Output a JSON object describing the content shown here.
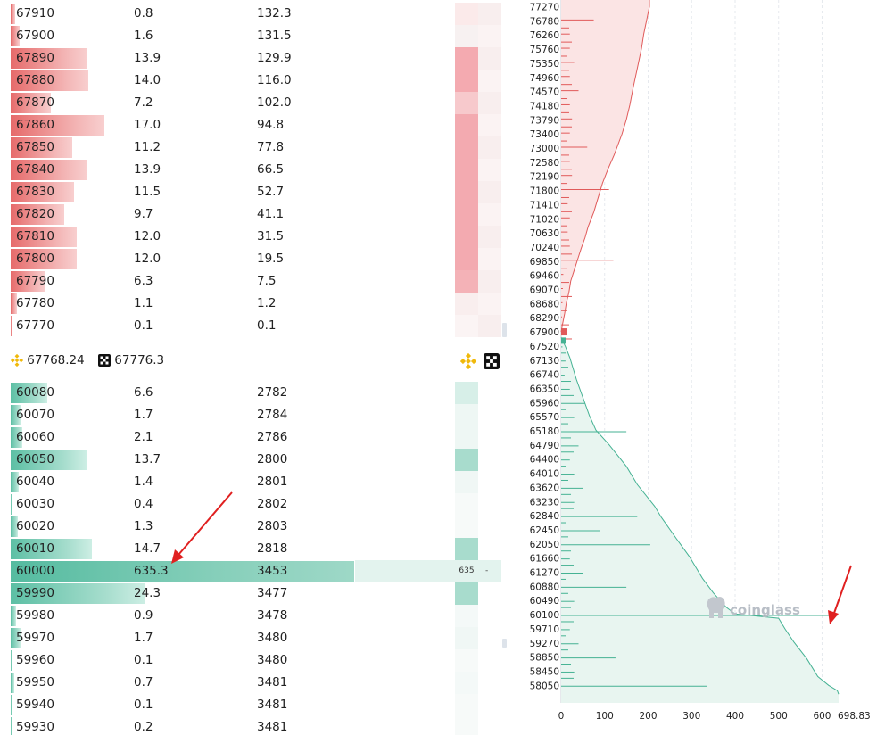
{
  "order_book": {
    "asks": [
      {
        "price": "67910",
        "size": "0.8",
        "total": "132.3",
        "depth": 0.8
      },
      {
        "price": "67900",
        "size": "1.6",
        "total": "131.5",
        "depth": 1.6
      },
      {
        "price": "67890",
        "size": "13.9",
        "total": "129.9",
        "depth": 13.9
      },
      {
        "price": "67880",
        "size": "14.0",
        "total": "116.0",
        "depth": 14.0
      },
      {
        "price": "67870",
        "size": "7.2",
        "total": "102.0",
        "depth": 7.2
      },
      {
        "price": "67860",
        "size": "17.0",
        "total": "94.8",
        "depth": 17.0
      },
      {
        "price": "67850",
        "size": "11.2",
        "total": "77.8",
        "depth": 11.2
      },
      {
        "price": "67840",
        "size": "13.9",
        "total": "66.5",
        "depth": 13.9
      },
      {
        "price": "67830",
        "size": "11.5",
        "total": "52.7",
        "depth": 11.5
      },
      {
        "price": "67820",
        "size": "9.7",
        "total": "41.1",
        "depth": 9.7
      },
      {
        "price": "67810",
        "size": "12.0",
        "total": "31.5",
        "depth": 12.0
      },
      {
        "price": "67800",
        "size": "12.0",
        "total": "19.5",
        "depth": 12.0
      },
      {
        "price": "67790",
        "size": "6.3",
        "total": "7.5",
        "depth": 6.3
      },
      {
        "price": "67780",
        "size": "1.1",
        "total": "1.2",
        "depth": 1.1
      },
      {
        "price": "67770",
        "size": "0.1",
        "total": "0.1",
        "depth": 0.1
      }
    ],
    "mid": {
      "binance_price": "67768.24",
      "okx_price": "67776.3"
    },
    "bids": [
      {
        "price": "60080",
        "size": "6.6",
        "total": "2782",
        "depth": 6.6
      },
      {
        "price": "60070",
        "size": "1.7",
        "total": "2784",
        "depth": 1.7
      },
      {
        "price": "60060",
        "size": "2.1",
        "total": "2786",
        "depth": 2.1
      },
      {
        "price": "60050",
        "size": "13.7",
        "total": "2800",
        "depth": 13.7
      },
      {
        "price": "60040",
        "size": "1.4",
        "total": "2801",
        "depth": 1.4
      },
      {
        "price": "60030",
        "size": "0.4",
        "total": "2802",
        "depth": 0.4
      },
      {
        "price": "60020",
        "size": "1.3",
        "total": "2803",
        "depth": 1.3
      },
      {
        "price": "60010",
        "size": "14.7",
        "total": "2818",
        "depth": 14.7
      },
      {
        "price": "60000",
        "size": "635.3",
        "total": "3453",
        "depth": 635.3
      },
      {
        "price": "59990",
        "size": "24.3",
        "total": "3477",
        "depth": 24.3
      },
      {
        "price": "59980",
        "size": "0.9",
        "total": "3478",
        "depth": 0.9
      },
      {
        "price": "59970",
        "size": "1.7",
        "total": "3480",
        "depth": 1.7
      },
      {
        "price": "59960",
        "size": "0.1",
        "total": "3480",
        "depth": 0.1
      },
      {
        "price": "59950",
        "size": "0.7",
        "total": "3481",
        "depth": 0.7
      },
      {
        "price": "59940",
        "size": "0.1",
        "total": "3481",
        "depth": 0.1
      },
      {
        "price": "59930",
        "size": "0.2",
        "total": "3481",
        "depth": 0.2
      }
    ],
    "wall": {
      "heat_label": "635",
      "dash": "-"
    },
    "colors": {
      "ask": "#e05a5a",
      "bid": "#45b293",
      "arrow": "#e02020"
    }
  },
  "depth_chart": {
    "y_ticks": [
      "77270",
      "76780",
      "76260",
      "75760",
      "75350",
      "74960",
      "74570",
      "74180",
      "73790",
      "73400",
      "73000",
      "72580",
      "72190",
      "71800",
      "71410",
      "71020",
      "70630",
      "70240",
      "69850",
      "69460",
      "69070",
      "68680",
      "68290",
      "67900",
      "67520",
      "67130",
      "66740",
      "66350",
      "65960",
      "65570",
      "65180",
      "64790",
      "64400",
      "64010",
      "63620",
      "63230",
      "62840",
      "62450",
      "62050",
      "61660",
      "61270",
      "60880",
      "60490",
      "60100",
      "59710",
      "59270",
      "58850",
      "58450",
      "58050"
    ],
    "x_ticks": [
      "0",
      "100",
      "200",
      "300",
      "400",
      "500",
      "600"
    ],
    "x_max_label": "698.83",
    "watermark": "coinglass",
    "ask_cum": [
      [
        0,
        67900
      ],
      [
        3,
        68100
      ],
      [
        8,
        68400
      ],
      [
        12,
        68700
      ],
      [
        18,
        69000
      ],
      [
        22,
        69300
      ],
      [
        30,
        69600
      ],
      [
        38,
        69900
      ],
      [
        46,
        70200
      ],
      [
        55,
        70500
      ],
      [
        62,
        70800
      ],
      [
        75,
        71200
      ],
      [
        85,
        71600
      ],
      [
        95,
        72000
      ],
      [
        108,
        72400
      ],
      [
        122,
        72800
      ],
      [
        140,
        73400
      ],
      [
        150,
        73800
      ],
      [
        158,
        74200
      ],
      [
        166,
        74700
      ],
      [
        175,
        75200
      ],
      [
        185,
        75800
      ],
      [
        190,
        76300
      ],
      [
        203,
        77270
      ]
    ],
    "ask_bars": [
      [
        67900,
        3
      ],
      [
        68290,
        2
      ],
      [
        68680,
        3
      ],
      [
        69070,
        4
      ],
      [
        69460,
        5
      ],
      [
        69850,
        120
      ],
      [
        70240,
        20
      ],
      [
        70630,
        15
      ],
      [
        71020,
        20
      ],
      [
        71410,
        15
      ],
      [
        71800,
        110
      ],
      [
        72190,
        25
      ],
      [
        72580,
        20
      ],
      [
        73000,
        60
      ],
      [
        73400,
        20
      ],
      [
        73790,
        25
      ],
      [
        74180,
        20
      ],
      [
        74570,
        40
      ],
      [
        74960,
        20
      ],
      [
        75350,
        30
      ],
      [
        75760,
        20
      ],
      [
        76260,
        20
      ],
      [
        76780,
        75
      ]
    ],
    "bid_cum": [
      [
        0,
        67750
      ],
      [
        10,
        67500
      ],
      [
        20,
        67200
      ],
      [
        35,
        66600
      ],
      [
        50,
        66100
      ],
      [
        65,
        65600
      ],
      [
        80,
        65200
      ],
      [
        110,
        64800
      ],
      [
        150,
        64200
      ],
      [
        175,
        63700
      ],
      [
        215,
        63100
      ],
      [
        230,
        62800
      ],
      [
        265,
        62200
      ],
      [
        295,
        61700
      ],
      [
        325,
        61100
      ],
      [
        350,
        60700
      ],
      [
        380,
        60300
      ],
      [
        400,
        60120
      ],
      [
        500,
        60000
      ],
      [
        515,
        59700
      ],
      [
        535,
        59300
      ],
      [
        565,
        58800
      ],
      [
        590,
        58300
      ],
      [
        615,
        58050
      ],
      [
        635,
        57900
      ],
      [
        638,
        57800
      ]
    ],
    "bid_bars": [
      [
        67520,
        3
      ],
      [
        67130,
        10
      ],
      [
        66740,
        8
      ],
      [
        66350,
        20
      ],
      [
        65960,
        55
      ],
      [
        65570,
        30
      ],
      [
        65180,
        150
      ],
      [
        64790,
        40
      ],
      [
        64400,
        20
      ],
      [
        64010,
        30
      ],
      [
        63620,
        50
      ],
      [
        63230,
        30
      ],
      [
        62840,
        175
      ],
      [
        62450,
        90
      ],
      [
        62050,
        205
      ],
      [
        61660,
        20
      ],
      [
        61270,
        50
      ],
      [
        60880,
        150
      ],
      [
        60490,
        30
      ],
      [
        60100,
        635
      ],
      [
        59710,
        20
      ],
      [
        59270,
        40
      ],
      [
        58850,
        125
      ],
      [
        58450,
        30
      ],
      [
        58050,
        335
      ]
    ],
    "colors": {
      "ask_line": "#e05a5a",
      "ask_fill": "#fbe4e4",
      "bid_line": "#45b293",
      "bid_fill": "#e8f5f0",
      "arrow": "#e02020"
    }
  }
}
